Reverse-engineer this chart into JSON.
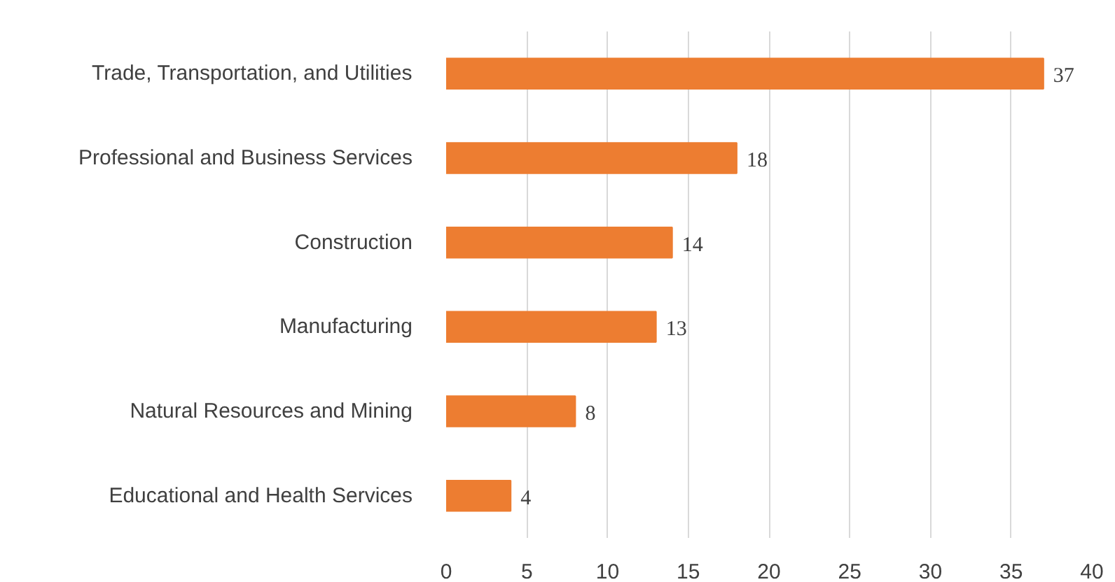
{
  "chart_data": {
    "type": "bar",
    "orientation": "horizontal",
    "categories": [
      "Trade, Transportation, and Utilities",
      "Professional and Business Services",
      "Construction",
      "Manufacturing",
      "Natural Resources and Mining",
      "Educational and Health Services"
    ],
    "values": [
      37,
      18,
      14,
      13,
      8,
      4
    ],
    "color": "#ed7d31",
    "xlim": [
      0,
      40
    ],
    "xticks": [
      0,
      5,
      10,
      15,
      20,
      25,
      30,
      35,
      40
    ],
    "grid": "x",
    "data_labels": true
  }
}
